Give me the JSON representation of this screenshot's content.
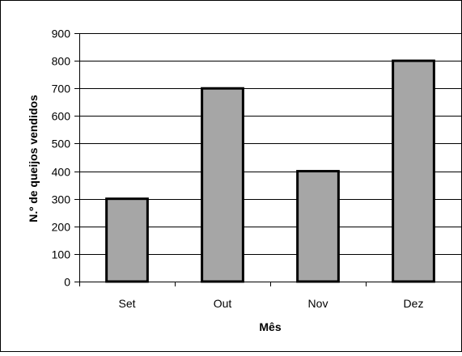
{
  "chart_data": {
    "type": "bar",
    "title": "",
    "xlabel": "Mês",
    "ylabel": "N.º de queijos vendidos",
    "categories": [
      "Set",
      "Out",
      "Nov",
      "Dez"
    ],
    "values": [
      300,
      700,
      400,
      800
    ],
    "ylim": [
      0,
      900
    ],
    "yticks": [
      0,
      100,
      200,
      300,
      400,
      500,
      600,
      700,
      800,
      900
    ],
    "grid": true,
    "legend": "none",
    "colors": {
      "bar_fill": "#a6a6a6",
      "bar_stroke": "#000000",
      "grid": "#000000",
      "axis": "#000000"
    }
  }
}
